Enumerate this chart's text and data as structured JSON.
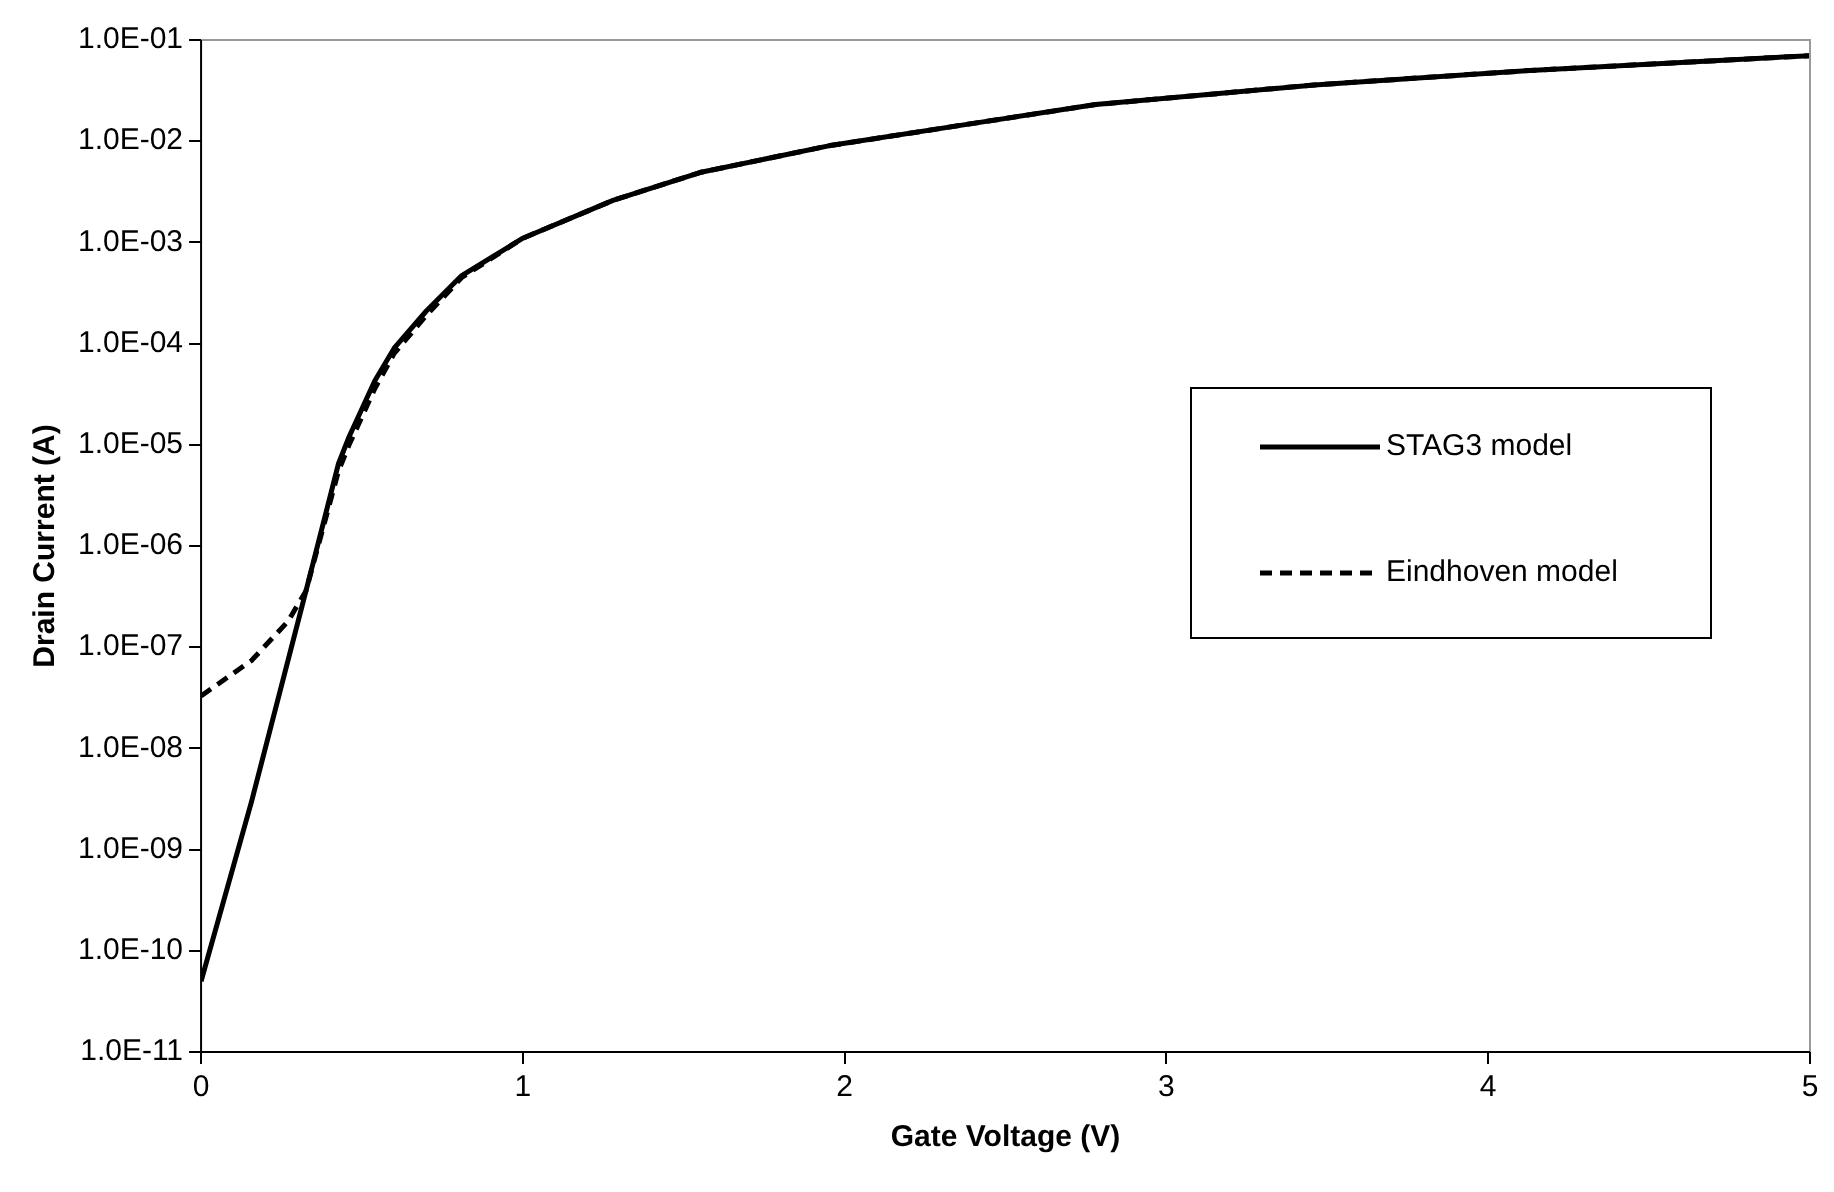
{
  "chart_data": {
    "type": "line",
    "xlabel": "Gate Voltage (V)",
    "ylabel": "Drain Current (A)",
    "log": "y",
    "xlim": [
      0,
      5
    ],
    "xticks": [
      0,
      1,
      2,
      3,
      4,
      5
    ],
    "ylim": [
      1e-11,
      0.1
    ],
    "yticks": [
      {
        "value": 1e-11,
        "label": "1.0E-11"
      },
      {
        "value": 1e-10,
        "label": "1.0E-10"
      },
      {
        "value": 1e-09,
        "label": "1.0E-09"
      },
      {
        "value": 1e-08,
        "label": "1.0E-08"
      },
      {
        "value": 1e-07,
        "label": "1.0E-07"
      },
      {
        "value": 1e-06,
        "label": "1.0E-06"
      },
      {
        "value": 1e-05,
        "label": "1.0E-05"
      },
      {
        "value": 0.0001,
        "label": "1.0E-04"
      },
      {
        "value": 0.001,
        "label": "1.0E-03"
      },
      {
        "value": 0.01,
        "label": "1.0E-02"
      },
      {
        "value": 0.1,
        "label": "1.0E-01"
      }
    ],
    "grid": false,
    "legend": "right",
    "marker": "none",
    "series": [
      {
        "name": "STAG3 model",
        "color": "#000000",
        "line_style": "solid",
        "x": [
          0,
          0.157,
          0.326,
          0.427,
          0.46,
          0.54,
          0.6,
          0.7,
          0.81,
          1.0,
          1.28,
          1.55,
          1.95,
          2.4,
          2.78,
          3.46,
          4.13,
          5
        ],
        "values": [
          5e-11,
          3e-09,
          3.6e-07,
          6.5e-06,
          1.2e-05,
          4.3e-05,
          9e-05,
          0.00021,
          0.00047,
          0.0011,
          0.0026,
          0.0049,
          0.009,
          0.015,
          0.023,
          0.036,
          0.05,
          0.07
        ]
      },
      {
        "name": "Eindhoven model",
        "color": "#000000",
        "line_style": "dashed",
        "x": [
          0,
          0.157,
          0.27,
          0.326,
          0.427,
          0.46,
          0.54,
          0.6,
          0.7,
          0.81,
          1.0,
          1.28,
          1.55,
          1.95,
          2.4,
          2.78,
          3.46,
          4.13,
          5
        ],
        "values": [
          3.3e-08,
          7.4e-08,
          1.8e-07,
          3.6e-07,
          5.5e-06,
          1e-05,
          3.6e-05,
          8e-05,
          0.00019,
          0.00045,
          0.0011,
          0.0026,
          0.0049,
          0.009,
          0.015,
          0.023,
          0.036,
          0.05,
          0.07
        ]
      }
    ]
  }
}
